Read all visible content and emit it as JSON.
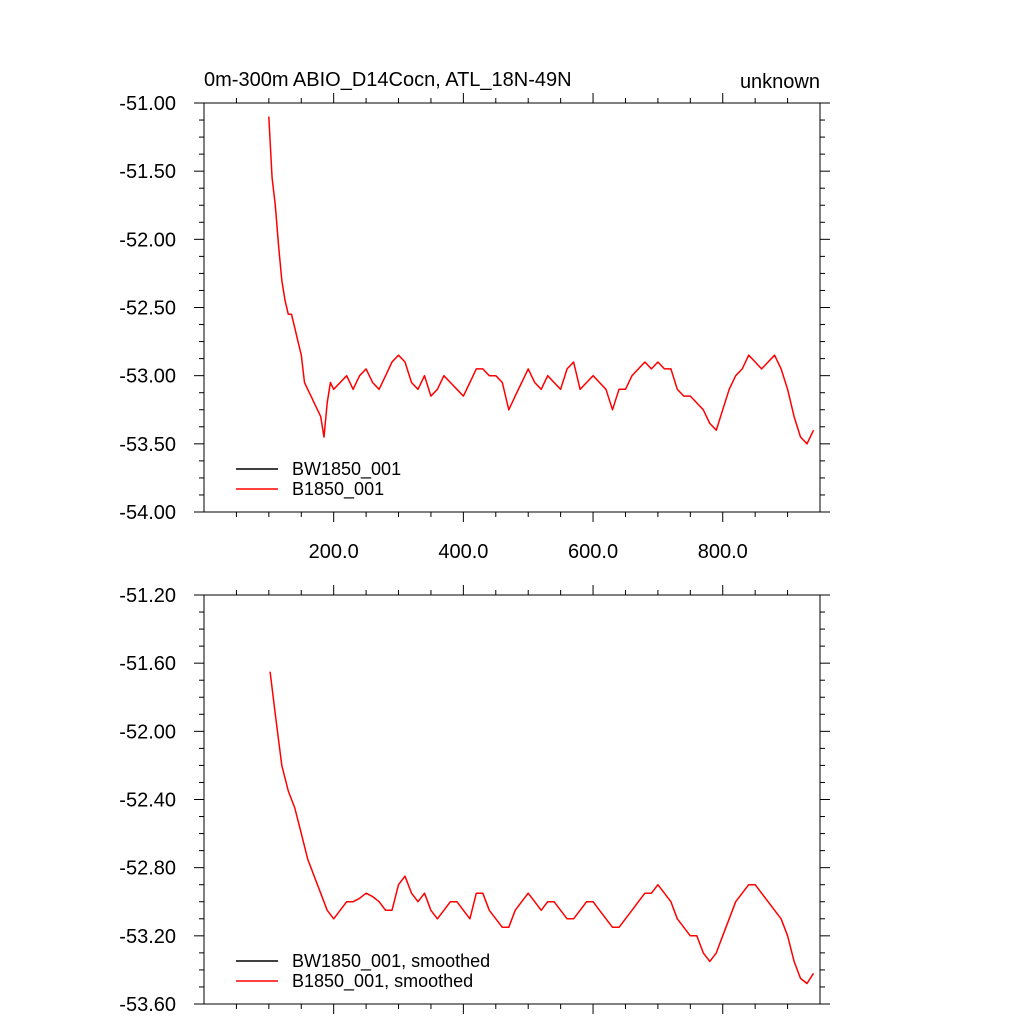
{
  "chart_data": [
    {
      "type": "line",
      "title_left": "0m-300m ABIO_D14Cocn, ATL_18N-49N",
      "title_right": "unknown",
      "xlim": [
        0,
        950
      ],
      "ylim": [
        -54.0,
        -51.0
      ],
      "x_ticks": [
        200,
        400,
        600,
        800
      ],
      "x_tick_labels": [
        "200.0",
        "400.0",
        "600.0",
        "800.0"
      ],
      "y_ticks": [
        -51.0,
        -51.5,
        -52.0,
        -52.5,
        -53.0,
        -53.5,
        -54.0
      ],
      "y_tick_labels": [
        "-51.00",
        "-51.50",
        "-52.00",
        "-52.50",
        "-53.00",
        "-53.50",
        "-54.00"
      ],
      "legend_position": "bottom-left",
      "series": [
        {
          "name": "BW1850_001",
          "color": "#000000",
          "x": [],
          "y": []
        },
        {
          "name": "B1850_001",
          "color": "#ff0000",
          "x": [
            100,
            105,
            110,
            115,
            120,
            125,
            130,
            135,
            140,
            145,
            150,
            155,
            160,
            165,
            170,
            175,
            180,
            185,
            190,
            195,
            200,
            210,
            220,
            230,
            240,
            250,
            260,
            270,
            280,
            290,
            300,
            310,
            320,
            330,
            340,
            350,
            360,
            370,
            380,
            390,
            400,
            410,
            420,
            430,
            440,
            450,
            460,
            470,
            480,
            490,
            500,
            510,
            520,
            530,
            540,
            550,
            560,
            570,
            580,
            590,
            600,
            610,
            620,
            630,
            640,
            650,
            660,
            670,
            680,
            690,
            700,
            710,
            720,
            730,
            740,
            750,
            760,
            770,
            780,
            790,
            800,
            810,
            820,
            830,
            840,
            850,
            860,
            870,
            880,
            890,
            900,
            910,
            920,
            930,
            940
          ],
          "y": [
            -51.1,
            -51.55,
            -51.75,
            -52.05,
            -52.3,
            -52.45,
            -52.55,
            -52.55,
            -52.65,
            -52.75,
            -52.85,
            -53.05,
            -53.1,
            -53.15,
            -53.2,
            -53.25,
            -53.3,
            -53.45,
            -53.2,
            -53.05,
            -53.1,
            -53.05,
            -53.0,
            -53.1,
            -53.0,
            -52.95,
            -53.05,
            -53.1,
            -53.0,
            -52.9,
            -52.85,
            -52.9,
            -53.05,
            -53.1,
            -53.0,
            -53.15,
            -53.1,
            -53.0,
            -53.05,
            -53.1,
            -53.15,
            -53.05,
            -52.95,
            -52.95,
            -53.0,
            -53.0,
            -53.05,
            -53.25,
            -53.15,
            -53.05,
            -52.95,
            -53.05,
            -53.1,
            -53.0,
            -53.05,
            -53.1,
            -52.95,
            -52.9,
            -53.1,
            -53.05,
            -53.0,
            -53.05,
            -53.1,
            -53.25,
            -53.1,
            -53.1,
            -53.0,
            -52.95,
            -52.9,
            -52.95,
            -52.9,
            -52.95,
            -52.95,
            -53.1,
            -53.15,
            -53.15,
            -53.2,
            -53.25,
            -53.35,
            -53.4,
            -53.25,
            -53.1,
            -53.0,
            -52.95,
            -52.85,
            -52.9,
            -52.95,
            -52.9,
            -52.85,
            -52.95,
            -53.1,
            -53.3,
            -53.45,
            -53.5,
            -53.4
          ]
        }
      ]
    },
    {
      "type": "line",
      "xlim": [
        0,
        950
      ],
      "ylim": [
        -53.6,
        -51.2
      ],
      "x_ticks": [
        200,
        400,
        600,
        800
      ],
      "y_ticks": [
        -51.2,
        -51.6,
        -52.0,
        -52.4,
        -52.8,
        -53.2,
        -53.6
      ],
      "y_tick_labels": [
        "-51.20",
        "-51.60",
        "-52.00",
        "-52.40",
        "-52.80",
        "-53.20",
        "-53.60"
      ],
      "legend_position": "bottom-left",
      "series": [
        {
          "name": "BW1850_001, smoothed",
          "color": "#000000",
          "x": [],
          "y": []
        },
        {
          "name": "B1850_001, smoothed",
          "color": "#ff0000",
          "x": [
            102,
            110,
            120,
            130,
            140,
            150,
            160,
            170,
            180,
            190,
            200,
            210,
            220,
            230,
            240,
            250,
            260,
            270,
            280,
            290,
            300,
            310,
            320,
            330,
            340,
            350,
            360,
            370,
            380,
            390,
            400,
            410,
            420,
            430,
            440,
            450,
            460,
            470,
            480,
            490,
            500,
            510,
            520,
            530,
            540,
            550,
            560,
            570,
            580,
            590,
            600,
            610,
            620,
            630,
            640,
            650,
            660,
            670,
            680,
            690,
            700,
            710,
            720,
            730,
            740,
            750,
            760,
            770,
            780,
            790,
            800,
            810,
            820,
            830,
            840,
            850,
            860,
            870,
            880,
            890,
            900,
            910,
            920,
            930,
            940
          ],
          "y": [
            -51.65,
            -51.9,
            -52.2,
            -52.35,
            -52.45,
            -52.6,
            -52.75,
            -52.85,
            -52.95,
            -53.05,
            -53.1,
            -53.05,
            -53.0,
            -53.0,
            -52.98,
            -52.95,
            -52.97,
            -53.0,
            -53.05,
            -53.05,
            -52.9,
            -52.85,
            -52.95,
            -53.0,
            -52.95,
            -53.05,
            -53.1,
            -53.05,
            -53.0,
            -53.0,
            -53.05,
            -53.1,
            -52.95,
            -52.95,
            -53.05,
            -53.1,
            -53.15,
            -53.15,
            -53.05,
            -53.0,
            -52.95,
            -53.0,
            -53.05,
            -53.0,
            -53.0,
            -53.05,
            -53.1,
            -53.1,
            -53.05,
            -53.0,
            -53.0,
            -53.05,
            -53.1,
            -53.15,
            -53.15,
            -53.1,
            -53.05,
            -53.0,
            -52.95,
            -52.95,
            -52.9,
            -52.95,
            -53.0,
            -53.1,
            -53.15,
            -53.2,
            -53.2,
            -53.3,
            -53.35,
            -53.3,
            -53.2,
            -53.1,
            -53.0,
            -52.95,
            -52.9,
            -52.9,
            -52.95,
            -53.0,
            -53.05,
            -53.1,
            -53.2,
            -53.35,
            -53.45,
            -53.48,
            -53.42
          ]
        }
      ]
    }
  ]
}
